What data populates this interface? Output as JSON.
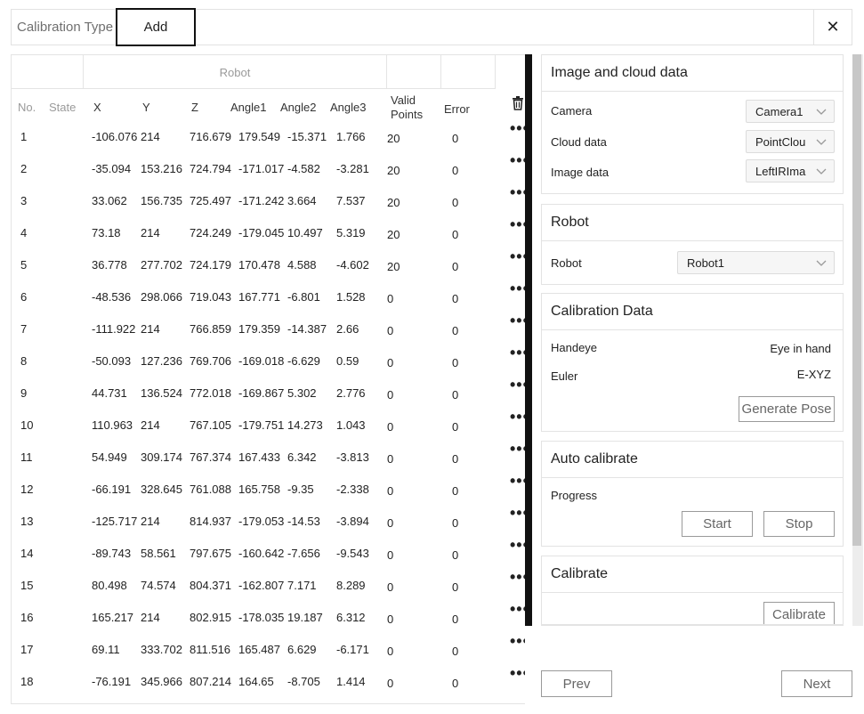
{
  "topbar": {
    "calibration_type_label": "Calibration Type",
    "add_label": "Add",
    "close_glyph": "✕"
  },
  "table": {
    "group_header": "Robot",
    "columns": {
      "no": "No.",
      "state": "State",
      "x": "X",
      "y": "Y",
      "z": "Z",
      "angle1": "Angle1",
      "angle2": "Angle2",
      "angle3": "Angle3",
      "valid_points": "Valid Points",
      "error": "Error"
    },
    "more_glyph": "•••",
    "rows": [
      {
        "no": "1",
        "x": "-106.076",
        "y": "214",
        "z": "716.679",
        "a1": "179.549",
        "a2": "-15.371",
        "a3": "1.766",
        "valid": "20",
        "err": "0"
      },
      {
        "no": "2",
        "x": "-35.094",
        "y": "153.216",
        "z": "724.794",
        "a1": "-171.017",
        "a2": "-4.582",
        "a3": "-3.281",
        "valid": "20",
        "err": "0"
      },
      {
        "no": "3",
        "x": "33.062",
        "y": "156.735",
        "z": "725.497",
        "a1": "-171.242",
        "a2": "3.664",
        "a3": "7.537",
        "valid": "20",
        "err": "0"
      },
      {
        "no": "4",
        "x": "73.18",
        "y": "214",
        "z": "724.249",
        "a1": "-179.045",
        "a2": "10.497",
        "a3": "5.319",
        "valid": "20",
        "err": "0"
      },
      {
        "no": "5",
        "x": "36.778",
        "y": "277.702",
        "z": "724.179",
        "a1": "170.478",
        "a2": "4.588",
        "a3": "-4.602",
        "valid": "20",
        "err": "0"
      },
      {
        "no": "6",
        "x": "-48.536",
        "y": "298.066",
        "z": "719.043",
        "a1": "167.771",
        "a2": "-6.801",
        "a3": "1.528",
        "valid": "0",
        "err": "0"
      },
      {
        "no": "7",
        "x": "-111.922",
        "y": "214",
        "z": "766.859",
        "a1": "179.359",
        "a2": "-14.387",
        "a3": "2.66",
        "valid": "0",
        "err": "0"
      },
      {
        "no": "8",
        "x": "-50.093",
        "y": "127.236",
        "z": "769.706",
        "a1": "-169.018",
        "a2": "-6.629",
        "a3": "0.59",
        "valid": "0",
        "err": "0"
      },
      {
        "no": "9",
        "x": "44.731",
        "y": "136.524",
        "z": "772.018",
        "a1": "-169.867",
        "a2": "5.302",
        "a3": "2.776",
        "valid": "0",
        "err": "0"
      },
      {
        "no": "10",
        "x": "110.963",
        "y": "214",
        "z": "767.105",
        "a1": "-179.751",
        "a2": "14.273",
        "a3": "1.043",
        "valid": "0",
        "err": "0"
      },
      {
        "no": "11",
        "x": "54.949",
        "y": "309.174",
        "z": "767.374",
        "a1": "167.433",
        "a2": "6.342",
        "a3": "-3.813",
        "valid": "0",
        "err": "0"
      },
      {
        "no": "12",
        "x": "-66.191",
        "y": "328.645",
        "z": "761.088",
        "a1": "165.758",
        "a2": "-9.35",
        "a3": "-2.338",
        "valid": "0",
        "err": "0"
      },
      {
        "no": "13",
        "x": "-125.717",
        "y": "214",
        "z": "814.937",
        "a1": "-179.053",
        "a2": "-14.53",
        "a3": "-3.894",
        "valid": "0",
        "err": "0"
      },
      {
        "no": "14",
        "x": "-89.743",
        "y": "58.561",
        "z": "797.675",
        "a1": "-160.642",
        "a2": "-7.656",
        "a3": "-9.543",
        "valid": "0",
        "err": "0"
      },
      {
        "no": "15",
        "x": "80.498",
        "y": "74.574",
        "z": "804.371",
        "a1": "-162.807",
        "a2": "7.171",
        "a3": "8.289",
        "valid": "0",
        "err": "0"
      },
      {
        "no": "16",
        "x": "165.217",
        "y": "214",
        "z": "802.915",
        "a1": "-178.035",
        "a2": "19.187",
        "a3": "6.312",
        "valid": "0",
        "err": "0"
      },
      {
        "no": "17",
        "x": "69.11",
        "y": "333.702",
        "z": "811.516",
        "a1": "165.487",
        "a2": "6.629",
        "a3": "-6.171",
        "valid": "0",
        "err": "0"
      },
      {
        "no": "18",
        "x": "-76.191",
        "y": "345.966",
        "z": "807.214",
        "a1": "164.65",
        "a2": "-8.705",
        "a3": "1.414",
        "valid": "0",
        "err": "0"
      }
    ]
  },
  "panel": {
    "image_cloud": {
      "title": "Image and cloud data",
      "camera_label": "Camera",
      "camera_value": "Camera1",
      "cloud_label": "Cloud data",
      "cloud_value": "PointClou",
      "image_label": "Image data",
      "image_value": "LeftIRIma"
    },
    "robot": {
      "title": "Robot",
      "robot_label": "Robot",
      "robot_value": "Robot1"
    },
    "calibration_data": {
      "title": "Calibration Data",
      "handeye_label": "Handeye",
      "handeye_value": "Eye in hand",
      "euler_label": "Euler",
      "euler_value": "E-XYZ",
      "generate_pose_label": "Generate Pose"
    },
    "auto_calibrate": {
      "title": "Auto calibrate",
      "progress_label": "Progress",
      "start_label": "Start",
      "stop_label": "Stop"
    },
    "calibrate": {
      "title": "Calibrate",
      "calibrate_label": "Calibrate"
    }
  },
  "footer": {
    "prev_label": "Prev",
    "next_label": "Next"
  },
  "icons": {
    "close": "close-icon",
    "trash": "trash-icon",
    "chevron": "chevron-down-icon",
    "more": "more-icon"
  }
}
